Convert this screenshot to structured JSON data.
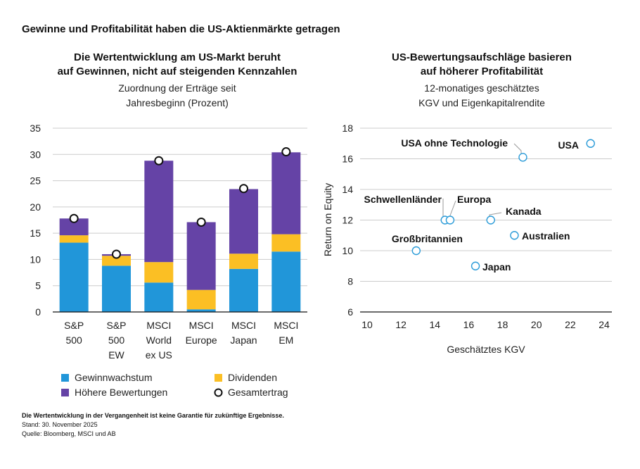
{
  "title": "Gewinne und Profitabilität haben die US-Aktienmärkte getragen",
  "left_panel": {
    "title_line1": "Die Wertentwicklung am US-Markt beruht",
    "title_line2": "auf Gewinnen, nicht auf steigenden Kennzahlen",
    "subtitle_line1": "Zuordnung der Erträge seit",
    "subtitle_line2": "Jahresbeginn (Prozent)"
  },
  "right_panel": {
    "title_line1": "US-Bewertungsaufschläge basieren",
    "title_line2": "auf höherer Profitabilität",
    "subtitle_line1": "12-monatiges geschätztes",
    "subtitle_line2": "KGV und Eigenkapitalrendite"
  },
  "colors": {
    "earnings": "#2196d9",
    "dividends": "#fbbf24",
    "valuation": "#6543a6",
    "total_marker_stroke": "#111111",
    "scatter_marker": "#2a9bd8",
    "grid": "#cccccc",
    "axis": "#111111"
  },
  "chart_data": [
    {
      "type": "bar",
      "stacked": true,
      "categories": [
        [
          "S&P",
          "500"
        ],
        [
          "S&P",
          "500",
          "EW"
        ],
        [
          "MSCI",
          "World",
          "ex US"
        ],
        [
          "MSCI",
          "Europe"
        ],
        [
          "MSCI",
          "Japan"
        ],
        [
          "MSCI",
          "EM"
        ]
      ],
      "series": [
        {
          "name": "Gewinnwachstum",
          "key": "earnings",
          "values": [
            13.2,
            8.8,
            5.6,
            0.5,
            8.2,
            11.5
          ]
        },
        {
          "name": "Dividenden",
          "key": "dividends",
          "values": [
            1.4,
            1.9,
            3.9,
            3.7,
            2.9,
            3.3
          ]
        },
        {
          "name": "Höhere Bewertungen",
          "key": "valuation",
          "values": [
            3.2,
            0.3,
            19.3,
            12.9,
            12.3,
            15.6
          ]
        }
      ],
      "total": {
        "name": "Gesamtertrag",
        "values": [
          17.8,
          11.0,
          28.8,
          17.1,
          23.5,
          30.5
        ]
      },
      "ylim": [
        0,
        35
      ],
      "yticks": [
        "35",
        "30",
        "25",
        "20",
        "15",
        "10",
        "5",
        "0"
      ],
      "grid": true,
      "legend": {
        "position": "bottom",
        "items": [
          "Gewinnwachstum",
          "Dividenden",
          "Höhere Bewertungen",
          "Gesamtertrag"
        ]
      }
    },
    {
      "type": "scatter",
      "xlabel": "Geschätztes KGV",
      "ylabel": "Return on Equity",
      "xlim": [
        10,
        24
      ],
      "ylim": [
        6,
        18
      ],
      "xticks": [
        "10",
        "12",
        "14",
        "16",
        "18",
        "20",
        "22",
        "24"
      ],
      "yticks": [
        "18",
        "16",
        "14",
        "12",
        "10",
        "8",
        "6"
      ],
      "grid": true,
      "points": [
        {
          "label": "USA",
          "x": 23.2,
          "y": 17.0
        },
        {
          "label": "USA ohne Technologie",
          "x": 19.2,
          "y": 16.1
        },
        {
          "label": "Schwellenländer",
          "x": 14.6,
          "y": 12.0
        },
        {
          "label": "Europa",
          "x": 14.9,
          "y": 12.0
        },
        {
          "label": "Kanada",
          "x": 17.3,
          "y": 12.0
        },
        {
          "label": "Australien",
          "x": 18.7,
          "y": 11.0
        },
        {
          "label": "Großbritannien",
          "x": 12.9,
          "y": 10.0
        },
        {
          "label": "Japan",
          "x": 16.4,
          "y": 9.0
        }
      ]
    }
  ],
  "footer": {
    "note": "Die Wertentwicklung in der Vergangenheit ist keine Garantie für zukünftige Ergebnisse.",
    "date": "Stand: 30. November 2025",
    "source": "Quelle: Bloomberg, MSCI und AB"
  }
}
